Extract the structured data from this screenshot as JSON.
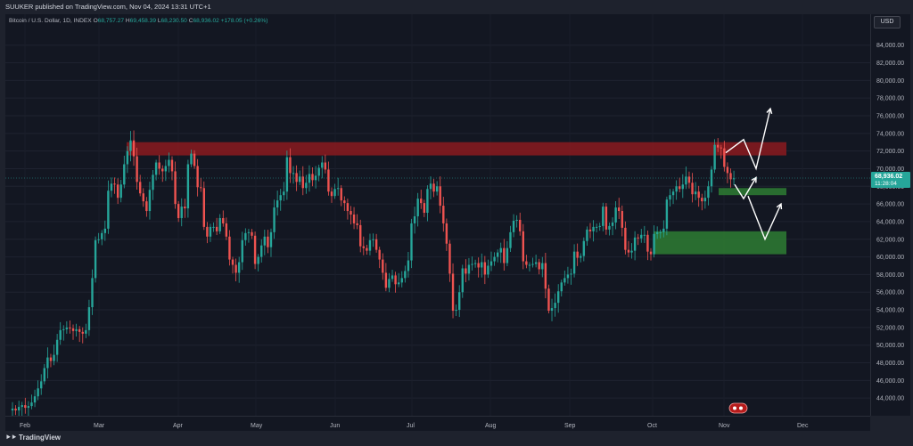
{
  "header": {
    "publisher_line": "SUUKER published on TradingView.com, Nov 04, 2024 13:31 UTC+1"
  },
  "legend": {
    "symbol": "Bitcoin / U.S. Dollar, 1D, INDEX",
    "open_label": "O",
    "open": "68,757.27",
    "high_label": "H",
    "high": "69,458.39",
    "low_label": "L",
    "low": "68,230.50",
    "close_label": "C",
    "close": "68,936.02",
    "change": "+178.05 (+0.26%)"
  },
  "price_axis": {
    "currency_button": "USD",
    "last_price": "68,936.02",
    "countdown": "11:28:04"
  },
  "footer": {
    "logo_text": "TradingView"
  },
  "chart_data": {
    "type": "candlestick",
    "y_range": [
      42000,
      87500
    ],
    "y_ticks": [
      "44,000.00",
      "46,000.00",
      "48,000.00",
      "50,000.00",
      "52,000.00",
      "54,000.00",
      "56,000.00",
      "58,000.00",
      "60,000.00",
      "62,000.00",
      "64,000.00",
      "66,000.00",
      "68,000.00",
      "70,000.00",
      "72,000.00",
      "74,000.00",
      "76,000.00",
      "78,000.00",
      "80,000.00",
      "82,000.00",
      "84,000.00"
    ],
    "x_labels": [
      "Feb",
      "Mar",
      "Apr",
      "May",
      "Jun",
      "Jul",
      "Aug",
      "Sep",
      "Oct",
      "Nov",
      "Dec"
    ],
    "colors": {
      "up": "#26a69a",
      "down": "#ef5350",
      "resistance": "#8b1a1f",
      "support": "#2e7d32",
      "arrows": "#ffffff"
    },
    "zones": [
      {
        "name": "resistance",
        "from": 71500,
        "to": 73000
      },
      {
        "name": "support-upper",
        "from": 67000,
        "to": 67800
      },
      {
        "name": "support-lower",
        "from": 60300,
        "to": 62900
      }
    ],
    "closes": [
      42800,
      42600,
      43000,
      43200,
      42900,
      43100,
      43500,
      44200,
      45100,
      45900,
      47400,
      48600,
      48200,
      48900,
      50600,
      51700,
      51800,
      52000,
      51900,
      51600,
      51800,
      51500,
      51300,
      51700,
      54300,
      57600,
      61900,
      62000,
      62700,
      63200,
      67500,
      68300,
      68200,
      66700,
      68200,
      70500,
      72000,
      73200,
      71400,
      68500,
      67200,
      66300,
      65200,
      67600,
      69300,
      70700,
      70000,
      69700,
      70300,
      71000,
      69700,
      66000,
      64400,
      65700,
      65500,
      70500,
      71700,
      70300,
      67900,
      67800,
      63400,
      62300,
      63400,
      63400,
      62900,
      64400,
      63800,
      62300,
      59700,
      59100,
      58200,
      59400,
      61900,
      62700,
      62800,
      62400,
      59200,
      60000,
      61300,
      62300,
      61100,
      62800,
      65600,
      66400,
      67000,
      67400,
      71300,
      69500,
      69500,
      68500,
      69100,
      67800,
      68400,
      69400,
      68700,
      69200,
      70100,
      70700,
      69900,
      67400,
      66900,
      67700,
      67800,
      66400,
      66100,
      65200,
      64800,
      63800,
      63600,
      61200,
      61000,
      60700,
      61900,
      62000,
      60800,
      59700,
      58200,
      56500,
      57500,
      57900,
      56900,
      57100,
      57600,
      58400,
      59600,
      63800,
      64600,
      66600,
      66100,
      65000,
      67700,
      68300,
      67400,
      68000,
      65800,
      63800,
      61500,
      58100,
      53900,
      54000,
      56000,
      58700,
      58100,
      59100,
      59200,
      59300,
      58800,
      59400,
      58000,
      59000,
      59500,
      60000,
      60500,
      61000,
      59300,
      61000,
      62800,
      64100,
      64200,
      62900,
      59500,
      59100,
      59100,
      59200,
      59400,
      58600,
      59300,
      56400,
      53900,
      54200,
      54800,
      56100,
      57100,
      57600,
      58000,
      58100,
      60600,
      59900,
      60100,
      61800,
      63100,
      62900,
      63400,
      63400,
      63500,
      65700,
      63100,
      63500,
      63900,
      65600,
      65200,
      63300,
      60800,
      60500,
      60700,
      62200,
      62100,
      62500,
      62500,
      60600,
      60300,
      62600,
      62800,
      62800,
      63200,
      66500,
      67000,
      67400,
      68000,
      67700,
      68200,
      69100,
      68400,
      67100,
      67400,
      66700,
      66300,
      66700,
      68000,
      69900,
      72700,
      72400,
      72300,
      70200,
      69500,
      68800,
      68900
    ]
  }
}
